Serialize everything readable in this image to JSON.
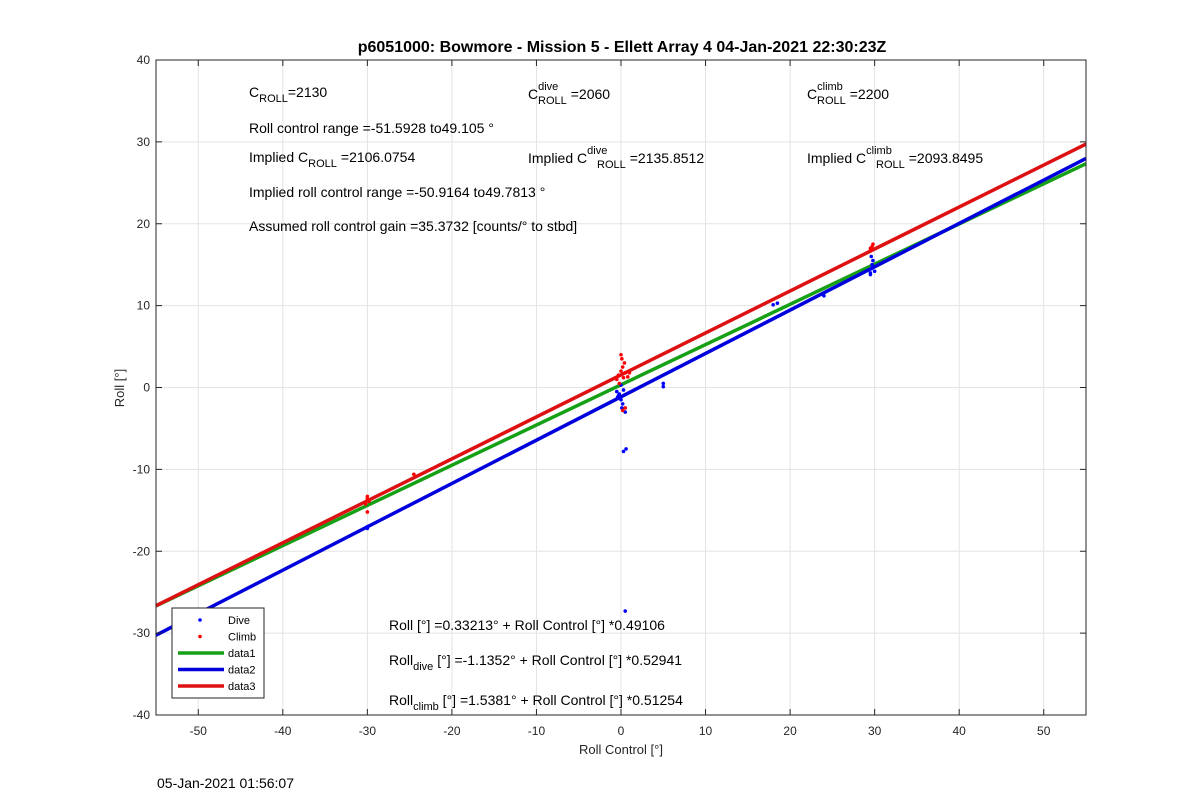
{
  "chart_data": {
    "type": "scatter",
    "title": "p6051000: Bowmore - Mission 5 - Ellett Array 4 04-Jan-2021 22:30:23Z",
    "xlabel": "Roll Control [°]",
    "ylabel": "Roll [°]",
    "xlim": [
      -55,
      55
    ],
    "ylim": [
      -40,
      40
    ],
    "xticks": [
      -50,
      -40,
      -30,
      -20,
      -10,
      0,
      10,
      20,
      30,
      40,
      50
    ],
    "yticks": [
      -40,
      -30,
      -20,
      -10,
      0,
      10,
      20,
      30,
      40
    ],
    "grid": true,
    "legend_position": "bottom-left",
    "colors": {
      "dive": "#0000ff",
      "climb": "#ff0000",
      "data1": "#16a016",
      "data2": "#0000dd",
      "data3": "#dd1111"
    },
    "series": [
      {
        "name": "Dive",
        "kind": "points",
        "color": "#0000ff",
        "points": [
          [
            -30,
            -17.0
          ],
          [
            -30,
            -17.2
          ],
          [
            -0.5,
            -0.5
          ],
          [
            -0.3,
            -1.0
          ],
          [
            0,
            -1.5
          ],
          [
            0.2,
            -2.0
          ],
          [
            0.1,
            -2.5
          ],
          [
            -0.2,
            -0.8
          ],
          [
            0.3,
            -0.3
          ],
          [
            0,
            0.3
          ],
          [
            -0.4,
            -1.2
          ],
          [
            0.5,
            -3.0
          ],
          [
            0.6,
            -7.5
          ],
          [
            0.3,
            -7.8
          ],
          [
            0.5,
            -27.3
          ],
          [
            5,
            0.5
          ],
          [
            5,
            0.1
          ],
          [
            18,
            10.1
          ],
          [
            18.5,
            10.3
          ],
          [
            24,
            11.2
          ],
          [
            29.5,
            14.0
          ],
          [
            29.6,
            14.5
          ],
          [
            29.7,
            15.0
          ],
          [
            29.8,
            15.5
          ],
          [
            29.5,
            13.8
          ],
          [
            30,
            14.2
          ],
          [
            29.6,
            16.0
          ]
        ]
      },
      {
        "name": "Climb",
        "kind": "points",
        "color": "#ff0000",
        "points": [
          [
            -30,
            -13.3
          ],
          [
            -30,
            -13.6
          ],
          [
            -29.8,
            -13.9
          ],
          [
            -30.2,
            -14.2
          ],
          [
            -30,
            -15.2
          ],
          [
            -24.5,
            -10.6
          ],
          [
            -0.5,
            1.0
          ],
          [
            -0.3,
            1.5
          ],
          [
            0,
            2.0
          ],
          [
            0.2,
            2.5
          ],
          [
            0.4,
            3.0
          ],
          [
            0.1,
            3.5
          ],
          [
            0,
            4.0
          ],
          [
            -0.2,
            0.5
          ],
          [
            0.3,
            1.2
          ],
          [
            0.5,
            1.8
          ],
          [
            0.8,
            1.3
          ],
          [
            1.0,
            1.8
          ],
          [
            0.5,
            -2.5
          ],
          [
            0.2,
            -2.8
          ],
          [
            29.6,
            16.8
          ],
          [
            29.7,
            17.2
          ],
          [
            29.8,
            17.5
          ],
          [
            29.5,
            17.0
          ]
        ]
      },
      {
        "name": "data1",
        "kind": "line",
        "color": "#16a016",
        "intercept": 0.33213,
        "slope": 0.49106
      },
      {
        "name": "data2",
        "kind": "line",
        "color": "#0000dd",
        "intercept": -1.1352,
        "slope": 0.52941
      },
      {
        "name": "data3",
        "kind": "line",
        "color": "#dd1111",
        "intercept": 1.5381,
        "slope": 0.51254
      }
    ],
    "legend": [
      {
        "label": "Dive",
        "marker": "dot",
        "color": "#0000ff"
      },
      {
        "label": "Climb",
        "marker": "dot",
        "color": "#ff0000"
      },
      {
        "label": "data1",
        "marker": "line",
        "color": "#16a016"
      },
      {
        "label": "data2",
        "marker": "line",
        "color": "#0000dd"
      },
      {
        "label": "data3",
        "marker": "line",
        "color": "#dd1111"
      }
    ],
    "annotations": {
      "c_roll": {
        "base": "C",
        "sub": "ROLL",
        "value": "=2130"
      },
      "c_roll_dive": {
        "base": "C",
        "sup": "dive",
        "sub": "ROLL",
        "value": "=2060"
      },
      "c_roll_climb": {
        "base": "C",
        "sup": "climb",
        "sub": "ROLL",
        "value": "=2200"
      },
      "roll_control_range": "Roll control range =-51.5928 to49.105 °",
      "implied_c_roll": {
        "prefix": "Implied C",
        "sub": "ROLL",
        "value": "=2106.0754"
      },
      "implied_c_roll_dive": {
        "prefix": "Implied C",
        "sup": "dive",
        "sub": "ROLL",
        "value": "=2135.8512"
      },
      "implied_c_roll_climb": {
        "prefix": "Implied C",
        "sup": "climb",
        "sub": "ROLL",
        "value": "=2093.8495"
      },
      "implied_roll_control_range": "Implied roll control range =-50.9164 to49.7813 °",
      "assumed_gain": "Assumed roll control gain =35.3732 [counts/° to stbd]",
      "fit_all": "Roll [°] =0.33213° + Roll Control [°] *0.49106",
      "fit_dive": {
        "base": "Roll",
        "sub": "dive",
        "rest": " [°] =-1.1352° + Roll Control [°] *0.52941"
      },
      "fit_climb": {
        "base": "Roll",
        "sub": "climb",
        "rest": " [°] =1.5381° + Roll Control [°] *0.51254"
      }
    }
  },
  "timestamp": "05-Jan-2021 01:56:07"
}
